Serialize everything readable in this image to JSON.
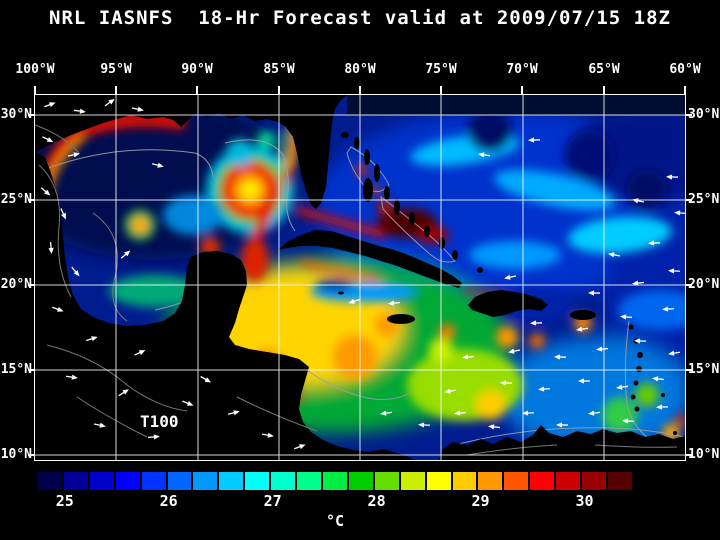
{
  "title": "NRL IASNFS  18-Hr Forecast valid at 2009/07/15 18Z",
  "map": {
    "annotation": "T100",
    "lon_labels": [
      "100°W",
      "95°W",
      "90°W",
      "85°W",
      "80°W",
      "75°W",
      "70°W",
      "65°W",
      "60°W"
    ],
    "lat_labels_left": [
      "30°N",
      "25°N",
      "20°N",
      "15°N",
      "10°N"
    ],
    "lat_labels_right": [
      "30°N",
      "25°N",
      "20°N",
      "15°N",
      "10°N"
    ]
  },
  "colorbar": {
    "unit": "°C",
    "tick_labels": [
      "25",
      "26",
      "27",
      "28",
      "29",
      "30"
    ],
    "tick_positions_pct": [
      4.5,
      22,
      39.5,
      57,
      74.5,
      92
    ],
    "colors": [
      "#00004d",
      "#000099",
      "#0000cc",
      "#0000ff",
      "#0033ff",
      "#0066ff",
      "#0099ff",
      "#00ccff",
      "#00ffff",
      "#00ffcc",
      "#00ff88",
      "#00ee44",
      "#00cc00",
      "#66dd00",
      "#ccee00",
      "#ffff00",
      "#ffcc00",
      "#ff9900",
      "#ff5500",
      "#ff0000",
      "#cc0000",
      "#990000",
      "#550000"
    ]
  }
}
